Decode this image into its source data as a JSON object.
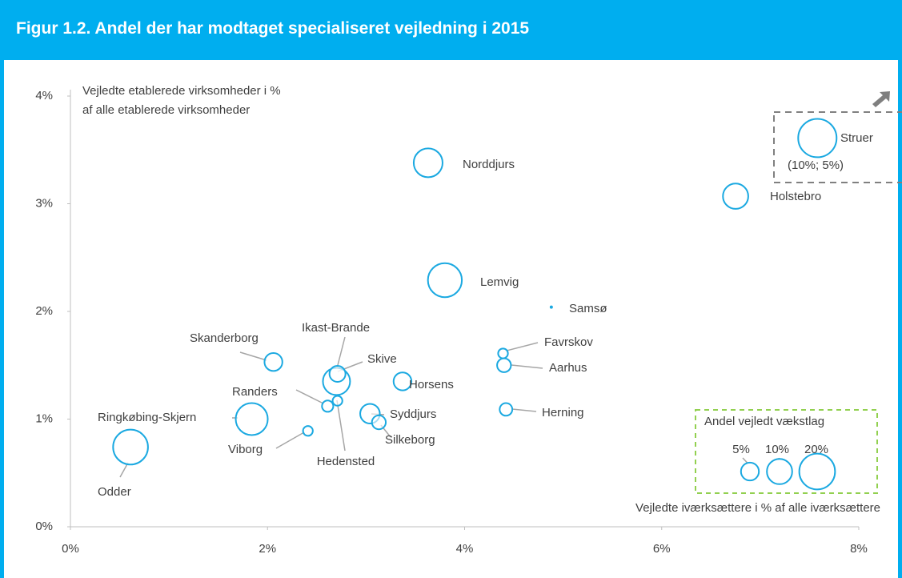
{
  "chart_data": {
    "type": "bubble",
    "title": "Figur 1.2. Andel der har modtaget specialiseret vejledning i 2015",
    "y_label": [
      "Vejledte etablerede virksomheder i %",
      "af alle etablerede virksomheder"
    ],
    "x_label": "Vejledte iværksættere i % af alle iværksættere",
    "color": "#1ba9e1",
    "xlim": [
      0,
      8
    ],
    "ylim": [
      0,
      4
    ],
    "xticks": [
      {
        "value": 0,
        "label": "0%"
      },
      {
        "value": 2,
        "label": "2%"
      },
      {
        "value": 4,
        "label": "4%"
      },
      {
        "value": 6,
        "label": "6%"
      },
      {
        "value": 8,
        "label": "8%"
      }
    ],
    "yticks": [
      {
        "value": 0,
        "label": "0%"
      },
      {
        "value": 1,
        "label": "1%"
      },
      {
        "value": 2,
        "label": "2%"
      },
      {
        "value": 3,
        "label": "3%"
      },
      {
        "value": 4,
        "label": "4%"
      }
    ],
    "names": [
      "Struer",
      "Holstebro",
      "Norddjurs",
      "Lemvig",
      "Samsø",
      "Favrskov",
      "Aarhus",
      "Herning",
      "Horsens",
      "Syddjurs",
      "Silkeborg",
      "Skive",
      "Ikast-Brande",
      "Hedensted",
      "Randers",
      "Viborg",
      "Skanderborg",
      "Ringkøbing-Skjern",
      "Odder"
    ],
    "x": [
      7.58,
      6.75,
      3.63,
      3.8,
      4.88,
      4.39,
      4.4,
      4.42,
      3.37,
      3.04,
      3.13,
      2.7,
      2.71,
      2.71,
      2.61,
      2.41,
      2.06,
      1.84,
      0.61
    ],
    "y": [
      3.61,
      3.07,
      3.38,
      2.29,
      2.04,
      1.61,
      1.5,
      1.09,
      1.35,
      1.05,
      0.97,
      1.35,
      1.42,
      1.17,
      1.12,
      0.89,
      1.53,
      1.0,
      0.74
    ],
    "sizes": [
      23,
      10,
      13,
      18,
      0,
      1.5,
      3,
      2.5,
      5,
      6,
      3,
      11.5,
      4,
      1.5,
      2,
      1.5,
      5,
      16,
      19
    ],
    "annotation": "(10%; 5%)",
    "legend": {
      "title": "Andel vejledt vækstlag",
      "sizes": [
        5,
        10,
        20
      ],
      "labels": [
        "5%",
        "10%",
        "20%"
      ]
    }
  }
}
